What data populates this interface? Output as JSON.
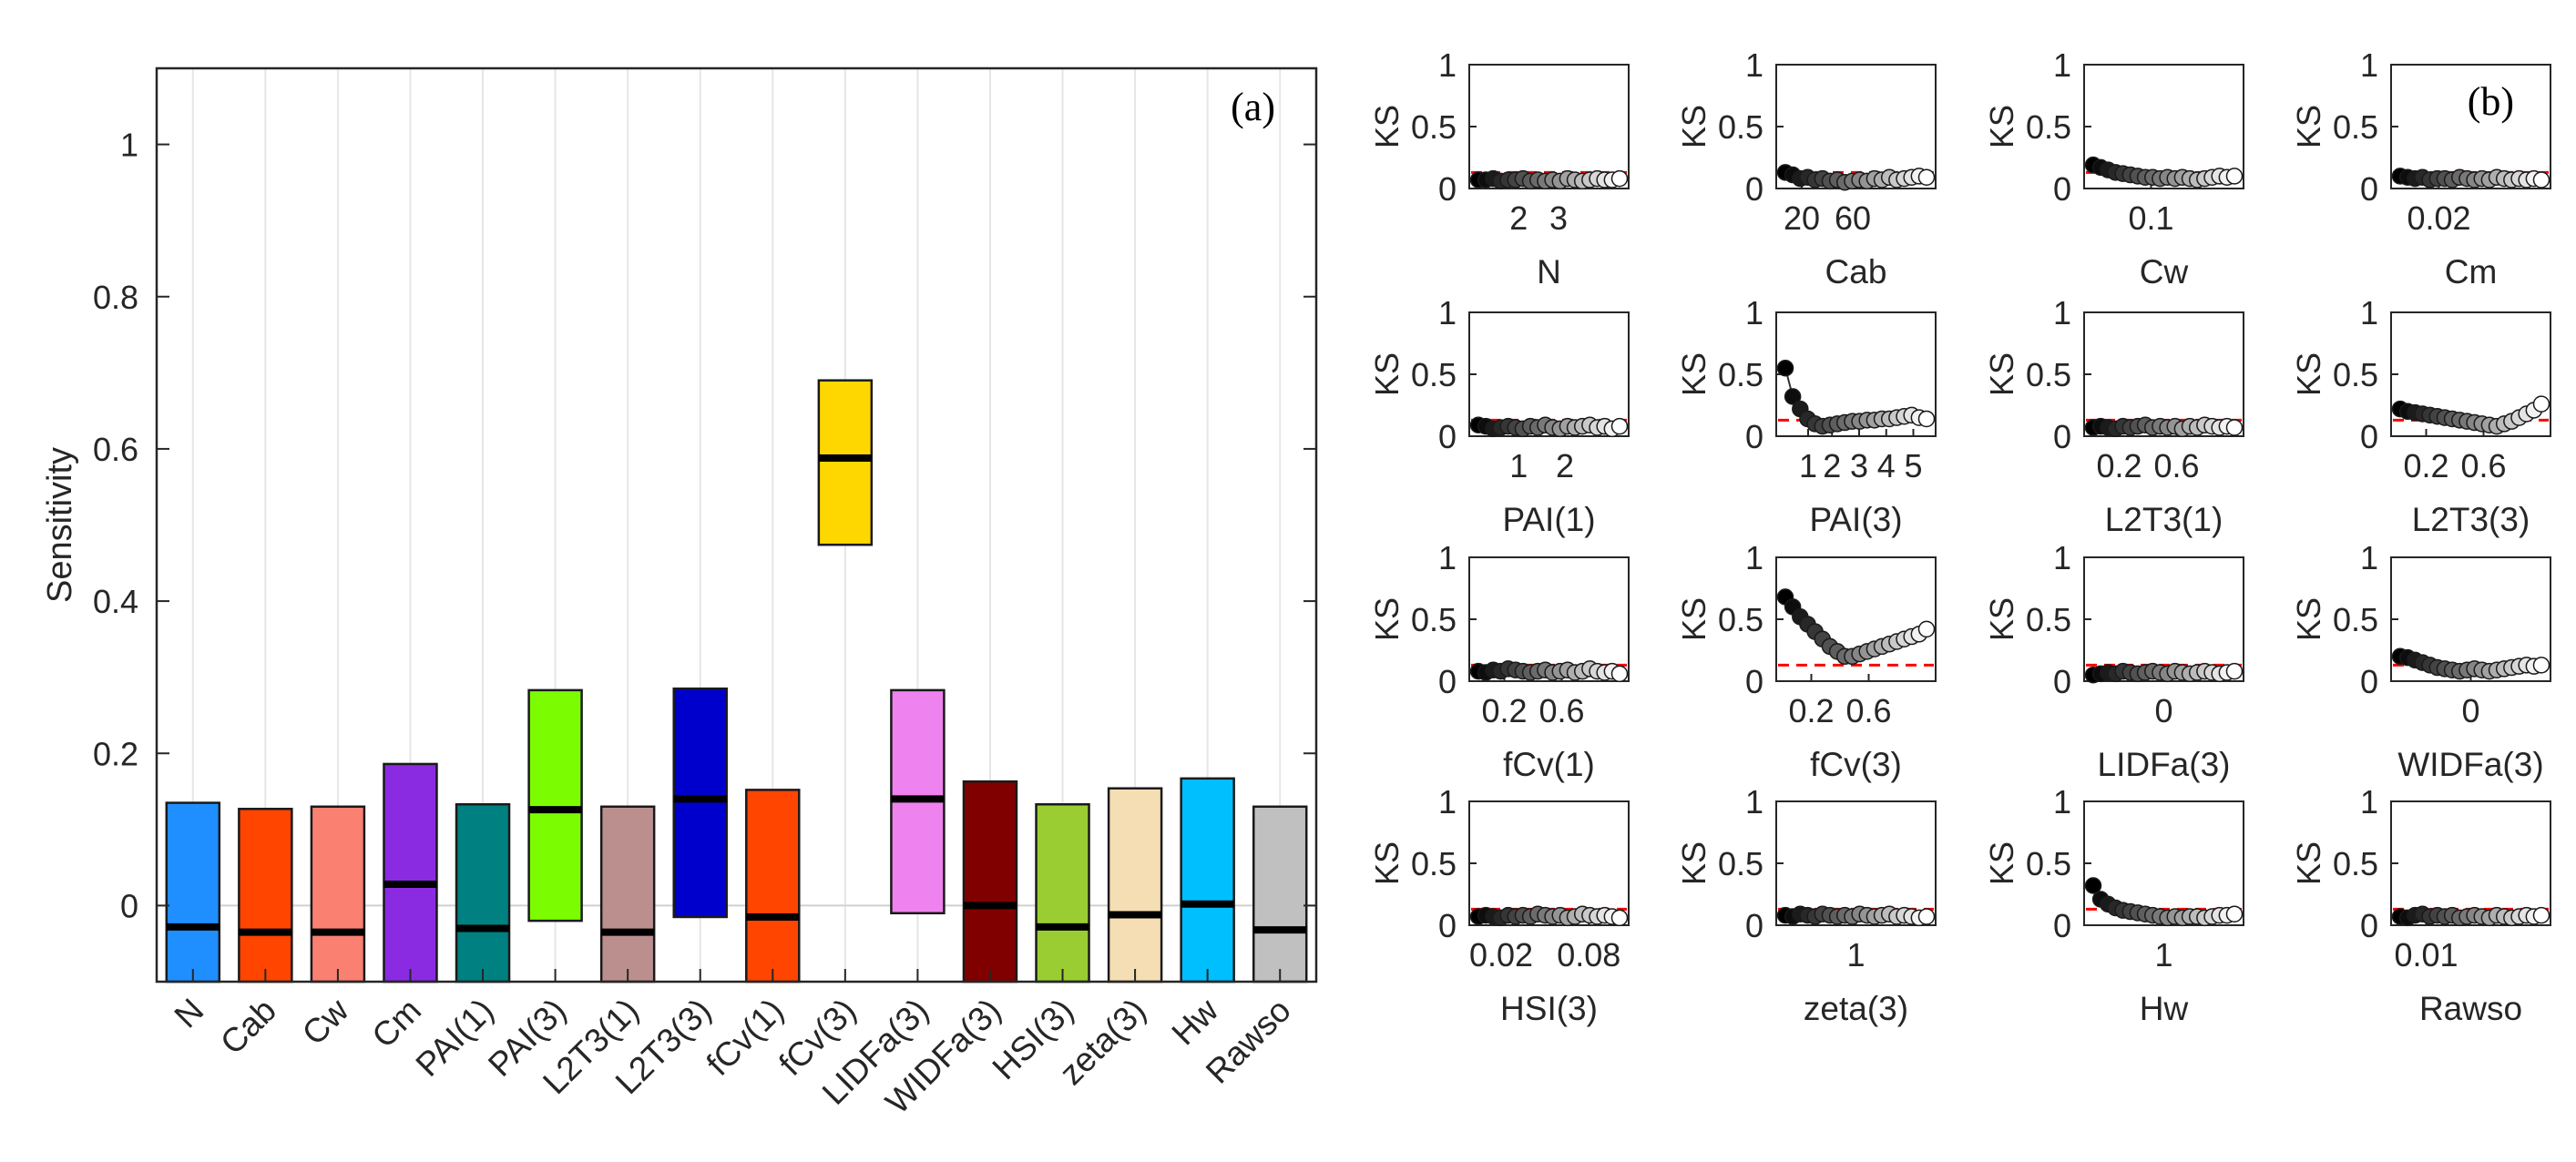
{
  "chart_data": [
    {
      "type": "bar",
      "subtype": "floating-range-with-median",
      "panel_label": "(a)",
      "ylabel": "Sensitivity",
      "ylim": [
        -0.1,
        1.1
      ],
      "yticks": [
        0,
        0.2,
        0.4,
        0.6,
        0.8,
        1
      ],
      "ytick_labels": [
        "0",
        "0.2",
        "0.4",
        "0.6",
        "0.8",
        "1"
      ],
      "grid": "vertical",
      "categories": [
        "N",
        "Cab",
        "Cw",
        "Cm",
        "PAI(1)",
        "PAI(3)",
        "L2T3(1)",
        "L2T3(3)",
        "fCv(1)",
        "fCv(3)",
        "LIDFa(3)",
        "WIDFa(3)",
        "HSI(3)",
        "zeta(3)",
        "Hw",
        "Rawso"
      ],
      "bars": [
        {
          "name": "N",
          "low": -0.1,
          "high": 0.135,
          "median": -0.028,
          "color": "#1f8fff"
        },
        {
          "name": "Cab",
          "low": -0.1,
          "high": 0.127,
          "median": -0.035,
          "color": "#ff4500"
        },
        {
          "name": "Cw",
          "low": -0.1,
          "high": 0.13,
          "median": -0.035,
          "color": "#fa8072"
        },
        {
          "name": "Cm",
          "low": -0.1,
          "high": 0.186,
          "median": 0.028,
          "color": "#8a2be2"
        },
        {
          "name": "PAI(1)",
          "low": -0.1,
          "high": 0.133,
          "median": -0.03,
          "color": "#008080"
        },
        {
          "name": "PAI(3)",
          "low": -0.02,
          "high": 0.283,
          "median": 0.126,
          "color": "#7cfc00"
        },
        {
          "name": "L2T3(1)",
          "low": -0.1,
          "high": 0.13,
          "median": -0.035,
          "color": "#bc8f8f"
        },
        {
          "name": "L2T3(3)",
          "low": -0.015,
          "high": 0.285,
          "median": 0.14,
          "color": "#0000cd"
        },
        {
          "name": "fCv(1)",
          "low": -0.1,
          "high": 0.152,
          "median": -0.015,
          "color": "#ff4500"
        },
        {
          "name": "fCv(3)",
          "low": 0.474,
          "high": 0.69,
          "median": 0.588,
          "color": "#ffd700"
        },
        {
          "name": "LIDFa(3)",
          "low": -0.01,
          "high": 0.283,
          "median": 0.14,
          "color": "#ee82ee"
        },
        {
          "name": "WIDFa(3)",
          "low": -0.1,
          "high": 0.163,
          "median": 0.0,
          "color": "#800000"
        },
        {
          "name": "HSI(3)",
          "low": -0.1,
          "high": 0.133,
          "median": -0.028,
          "color": "#9acd32"
        },
        {
          "name": "zeta(3)",
          "low": -0.1,
          "high": 0.154,
          "median": -0.012,
          "color": "#f5deb3"
        },
        {
          "name": "Hw",
          "low": -0.1,
          "high": 0.167,
          "median": 0.002,
          "color": "#00bfff"
        },
        {
          "name": "Rawso",
          "low": -0.1,
          "high": 0.13,
          "median": -0.032,
          "color": "#c0c0c0"
        }
      ]
    },
    {
      "type": "scatter",
      "panel_label": "(b)",
      "ylabel": "KS",
      "ylim": [
        0,
        1
      ],
      "yticks": [
        0,
        0.5,
        1
      ],
      "ytick_labels": [
        "0",
        "0.5",
        "1"
      ],
      "threshold": 0.13,
      "threshold_color": "#ff0000",
      "points_per_panel": 20,
      "panels": [
        {
          "xlabel": "N",
          "xticks": [
            {
              "label": "2",
              "pos": 0.31
            },
            {
              "label": "3",
              "pos": 0.56
            }
          ],
          "ks": [
            0.07,
            0.07,
            0.08,
            0.06,
            0.07,
            0.07,
            0.08,
            0.06,
            0.07,
            0.06,
            0.07,
            0.06,
            0.08,
            0.07,
            0.06,
            0.07,
            0.08,
            0.07,
            0.07,
            0.08
          ]
        },
        {
          "xlabel": "Cab",
          "xticks": [
            {
              "label": "20",
              "pos": 0.16
            },
            {
              "label": "60",
              "pos": 0.48
            }
          ],
          "ks": [
            0.13,
            0.11,
            0.08,
            0.09,
            0.07,
            0.08,
            0.06,
            0.07,
            0.05,
            0.06,
            0.07,
            0.06,
            0.08,
            0.07,
            0.09,
            0.07,
            0.08,
            0.09,
            0.1,
            0.09
          ]
        },
        {
          "xlabel": "Cw",
          "xticks": [
            {
              "label": "0.1",
              "pos": 0.42
            }
          ],
          "ks": [
            0.19,
            0.17,
            0.15,
            0.13,
            0.12,
            0.11,
            0.1,
            0.09,
            0.09,
            0.08,
            0.09,
            0.08,
            0.09,
            0.08,
            0.07,
            0.08,
            0.09,
            0.1,
            0.09,
            0.1
          ]
        },
        {
          "xlabel": "Cm",
          "xticks": [
            {
              "label": "0.02",
              "pos": 0.3
            }
          ],
          "ks": [
            0.1,
            0.09,
            0.08,
            0.09,
            0.07,
            0.08,
            0.08,
            0.07,
            0.09,
            0.08,
            0.07,
            0.08,
            0.07,
            0.09,
            0.08,
            0.07,
            0.08,
            0.07,
            0.08,
            0.07
          ]
        },
        {
          "xlabel": "PAI(1)",
          "xticks": [
            {
              "label": "1",
              "pos": 0.31
            },
            {
              "label": "2",
              "pos": 0.6
            }
          ],
          "ks": [
            0.09,
            0.08,
            0.06,
            0.07,
            0.08,
            0.07,
            0.06,
            0.08,
            0.07,
            0.09,
            0.07,
            0.06,
            0.08,
            0.07,
            0.08,
            0.09,
            0.07,
            0.08,
            0.06,
            0.08
          ]
        },
        {
          "xlabel": "PAI(3)",
          "xticks": [
            {
              "label": "1",
              "pos": 0.2
            },
            {
              "label": "2",
              "pos": 0.35
            },
            {
              "label": "3",
              "pos": 0.52
            },
            {
              "label": "4",
              "pos": 0.69
            },
            {
              "label": "5",
              "pos": 0.86
            }
          ],
          "ks": [
            0.55,
            0.32,
            0.22,
            0.14,
            0.1,
            0.08,
            0.09,
            0.1,
            0.11,
            0.12,
            0.12,
            0.13,
            0.13,
            0.14,
            0.14,
            0.15,
            0.16,
            0.17,
            0.15,
            0.14
          ]
        },
        {
          "xlabel": "L2T3(1)",
          "xticks": [
            {
              "label": "0.2",
              "pos": 0.22
            },
            {
              "label": "0.6",
              "pos": 0.58
            }
          ],
          "ks": [
            0.07,
            0.08,
            0.07,
            0.06,
            0.08,
            0.07,
            0.08,
            0.09,
            0.07,
            0.08,
            0.07,
            0.08,
            0.06,
            0.08,
            0.07,
            0.09,
            0.08,
            0.07,
            0.08,
            0.07
          ]
        },
        {
          "xlabel": "L2T3(3)",
          "xticks": [
            {
              "label": "0.2",
              "pos": 0.22
            },
            {
              "label": "0.6",
              "pos": 0.58
            }
          ],
          "ks": [
            0.22,
            0.2,
            0.19,
            0.18,
            0.17,
            0.16,
            0.15,
            0.14,
            0.13,
            0.12,
            0.11,
            0.1,
            0.09,
            0.08,
            0.1,
            0.12,
            0.15,
            0.18,
            0.21,
            0.26
          ]
        },
        {
          "xlabel": "fCv(1)",
          "xticks": [
            {
              "label": "0.2",
              "pos": 0.22
            },
            {
              "label": "0.6",
              "pos": 0.58
            }
          ],
          "ks": [
            0.08,
            0.07,
            0.09,
            0.08,
            0.1,
            0.09,
            0.08,
            0.07,
            0.08,
            0.09,
            0.07,
            0.08,
            0.09,
            0.07,
            0.08,
            0.1,
            0.08,
            0.07,
            0.08,
            0.06
          ]
        },
        {
          "xlabel": "fCv(3)",
          "xticks": [
            {
              "label": "0.2",
              "pos": 0.22
            },
            {
              "label": "0.6",
              "pos": 0.58
            }
          ],
          "ks": [
            0.68,
            0.6,
            0.52,
            0.46,
            0.4,
            0.34,
            0.28,
            0.24,
            0.2,
            0.2,
            0.22,
            0.24,
            0.26,
            0.28,
            0.3,
            0.32,
            0.34,
            0.36,
            0.38,
            0.42
          ]
        },
        {
          "xlabel": "LIDFa(3)",
          "xticks": [
            {
              "label": "0",
              "pos": 0.5
            }
          ],
          "ks": [
            0.05,
            0.06,
            0.07,
            0.06,
            0.08,
            0.07,
            0.06,
            0.07,
            0.08,
            0.07,
            0.06,
            0.08,
            0.07,
            0.06,
            0.07,
            0.08,
            0.07,
            0.06,
            0.07,
            0.08
          ]
        },
        {
          "xlabel": "WIDFa(3)",
          "xticks": [
            {
              "label": "0",
              "pos": 0.5
            }
          ],
          "ks": [
            0.2,
            0.19,
            0.17,
            0.15,
            0.13,
            0.11,
            0.1,
            0.09,
            0.08,
            0.09,
            0.1,
            0.09,
            0.08,
            0.09,
            0.1,
            0.11,
            0.12,
            0.13,
            0.12,
            0.13
          ]
        },
        {
          "xlabel": "HSI(3)",
          "xticks": [
            {
              "label": "0.02",
              "pos": 0.2
            },
            {
              "label": "0.08",
              "pos": 0.75
            }
          ],
          "ks": [
            0.07,
            0.08,
            0.07,
            0.06,
            0.08,
            0.07,
            0.08,
            0.07,
            0.09,
            0.08,
            0.07,
            0.08,
            0.06,
            0.07,
            0.09,
            0.08,
            0.07,
            0.08,
            0.07,
            0.06
          ]
        },
        {
          "xlabel": "zeta(3)",
          "xticks": [
            {
              "label": "1",
              "pos": 0.5
            }
          ],
          "ks": [
            0.08,
            0.07,
            0.09,
            0.08,
            0.07,
            0.09,
            0.08,
            0.07,
            0.08,
            0.07,
            0.09,
            0.08,
            0.07,
            0.08,
            0.09,
            0.07,
            0.08,
            0.07,
            0.06,
            0.07
          ]
        },
        {
          "xlabel": "Hw",
          "xticks": [
            {
              "label": "1",
              "pos": 0.5
            }
          ],
          "ks": [
            0.32,
            0.21,
            0.17,
            0.14,
            0.12,
            0.11,
            0.1,
            0.09,
            0.08,
            0.07,
            0.06,
            0.07,
            0.06,
            0.07,
            0.07,
            0.06,
            0.07,
            0.08,
            0.08,
            0.09
          ]
        },
        {
          "xlabel": "Rawso",
          "xticks": [
            {
              "label": "0.01",
              "pos": 0.22
            }
          ],
          "ks": [
            0.07,
            0.06,
            0.08,
            0.09,
            0.07,
            0.08,
            0.07,
            0.08,
            0.06,
            0.07,
            0.08,
            0.07,
            0.06,
            0.08,
            0.07,
            0.06,
            0.07,
            0.08,
            0.07,
            0.08
          ]
        }
      ]
    }
  ]
}
